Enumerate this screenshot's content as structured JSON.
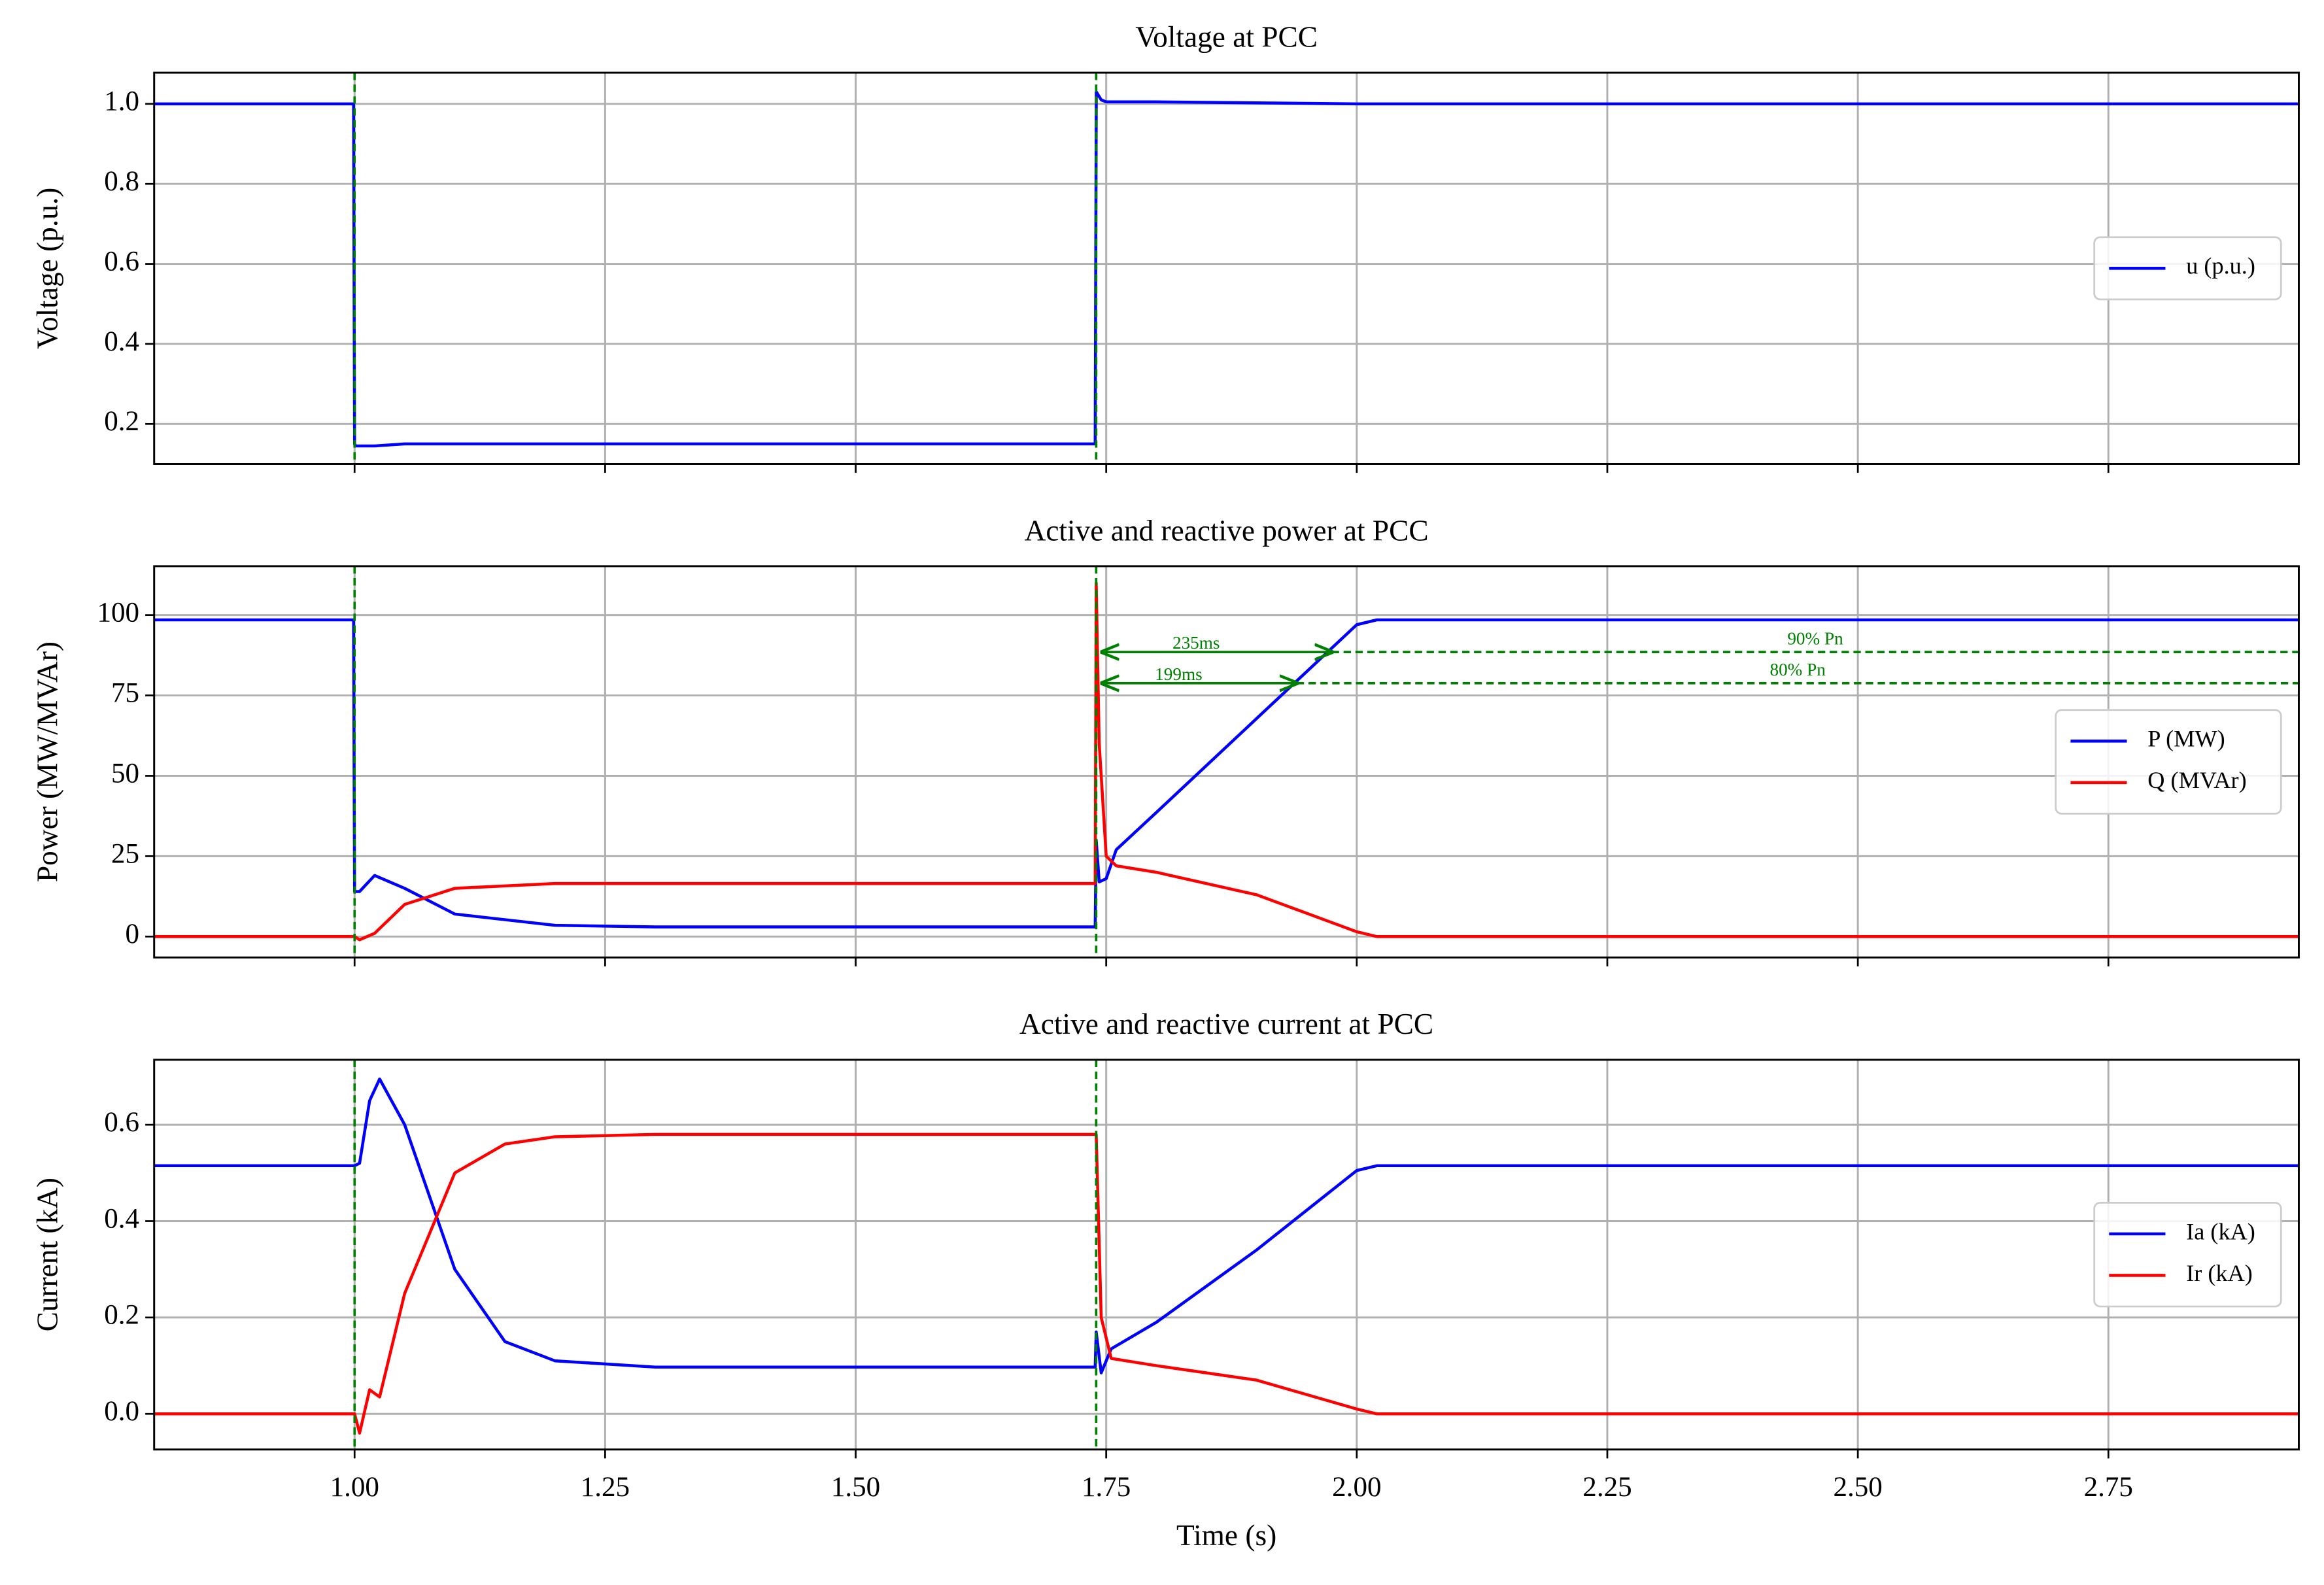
{
  "chart_data": [
    {
      "type": "line",
      "title": "Voltage at PCC",
      "ylabel": "Voltage (p.u.)",
      "x": [
        0.8,
        0.999,
        1.0,
        1.001,
        1.02,
        1.05,
        1.739,
        1.7401,
        1.745,
        1.75,
        1.8,
        2.0,
        2.94
      ],
      "series": [
        {
          "name": "u (p.u.)",
          "color": "#0000ff",
          "values": [
            1,
            1,
            0.15,
            0.145,
            0.145,
            0.15,
            0.15,
            1.03,
            1.01,
            1.005,
            1.005,
            1.0,
            1.0
          ]
        }
      ],
      "xlim": [
        0.8,
        2.94
      ],
      "xticks": [
        1,
        1.25,
        1.5,
        1.75,
        2,
        2.25,
        2.5,
        2.75
      ],
      "ylim": [
        0.1,
        1.078
      ],
      "yticks": [
        0.2,
        0.4,
        0.6,
        0.8,
        {
          "value": 1,
          "label": "1.0"
        }
      ],
      "grid": true,
      "legend": "center right",
      "vlines": [
        1.0,
        1.74
      ],
      "vline_color": "#008000"
    },
    {
      "type": "line",
      "title": "Active and reactive power at PCC",
      "ylabel": "Power (MW/MVAr)",
      "x": [
        0.8,
        0.999,
        1.0,
        1.005,
        1.02,
        1.05,
        1.1,
        1.2,
        1.3,
        1.739,
        1.74,
        1.743,
        1.75,
        1.76,
        1.8,
        1.9,
        2.0,
        2.02,
        2.94
      ],
      "series": [
        {
          "name": "P (MW)",
          "color": "#0000ff",
          "values": [
            98.5,
            98.5,
            14,
            14,
            19,
            15,
            7,
            3.5,
            3,
            3,
            30,
            17,
            18,
            27,
            38.6,
            67.8,
            97,
            98.5,
            98.5
          ]
        },
        {
          "name": "Q (MVAr)",
          "color": "#ff0000",
          "values": [
            0,
            0,
            0,
            -1,
            1,
            10,
            15,
            16.5,
            16.5,
            16.5,
            110,
            60,
            25,
            22,
            20,
            13,
            1.5,
            0,
            0
          ]
        }
      ],
      "xlim": [
        0.8,
        2.94
      ],
      "xticks": [
        1,
        1.25,
        1.5,
        1.75,
        2,
        2.25,
        2.5,
        2.75
      ],
      "ylim": [
        -6.5,
        115.2
      ],
      "yticks": [
        0,
        25,
        50,
        75,
        100
      ],
      "grid": true,
      "legend": "center right",
      "vlines": [
        1.0,
        1.74
      ],
      "vline_color": "#008000",
      "hlines": [
        {
          "y": 88.5,
          "label": "90% Pn"
        },
        {
          "y": 78.8,
          "label": "80% Pn"
        }
      ],
      "arrows": [
        {
          "x": [
            1.74,
            1.975
          ],
          "y": 88.5,
          "label": "235ms"
        },
        {
          "x": [
            1.74,
            1.94
          ],
          "y": 78.8,
          "label": "199ms"
        }
      ]
    },
    {
      "type": "line",
      "title": "Active and reactive current at PCC",
      "ylabel": "Current (kA)",
      "xlabel": "Time (s)",
      "x": [
        0.8,
        1.0,
        1.005,
        1.015,
        1.025,
        1.05,
        1.1,
        1.15,
        1.2,
        1.3,
        1.739,
        1.74,
        1.745,
        1.755,
        1.8,
        1.9,
        2.0,
        2.02,
        2.94
      ],
      "series": [
        {
          "name": "Ia (kA)",
          "color": "#0000ff",
          "values": [
            0.515,
            0.515,
            0.52,
            0.65,
            0.695,
            0.6,
            0.3,
            0.15,
            0.11,
            0.097,
            0.097,
            0.17,
            0.085,
            0.135,
            0.19,
            0.34,
            0.505,
            0.515,
            0.515
          ]
        },
        {
          "name": "Ir (kA)",
          "color": "#ff0000",
          "values": [
            0,
            0,
            -0.04,
            0.05,
            0.035,
            0.25,
            0.5,
            0.56,
            0.575,
            0.58,
            0.58,
            0.58,
            0.2,
            0.115,
            0.1,
            0.07,
            0.01,
            0,
            0
          ]
        }
      ],
      "xlim": [
        0.8,
        2.94
      ],
      "xticks": [
        {
          "value": 1,
          "label": "1.00"
        },
        {
          "value": 1.25,
          "label": "1.25"
        },
        {
          "value": 1.5,
          "label": "1.50"
        },
        {
          "value": 1.75,
          "label": "1.75"
        },
        {
          "value": 2,
          "label": "2.00"
        },
        {
          "value": 2.25,
          "label": "2.25"
        },
        {
          "value": 2.5,
          "label": "2.50"
        },
        {
          "value": 2.75,
          "label": "2.75"
        }
      ],
      "ylim": [
        -0.074,
        0.735
      ],
      "yticks": [
        {
          "value": 0,
          "label": "0.0"
        },
        0.2,
        0.4,
        0.6
      ],
      "grid": true,
      "legend": "center right",
      "vlines": [
        1.0,
        1.74
      ],
      "vline_color": "#008000"
    }
  ]
}
